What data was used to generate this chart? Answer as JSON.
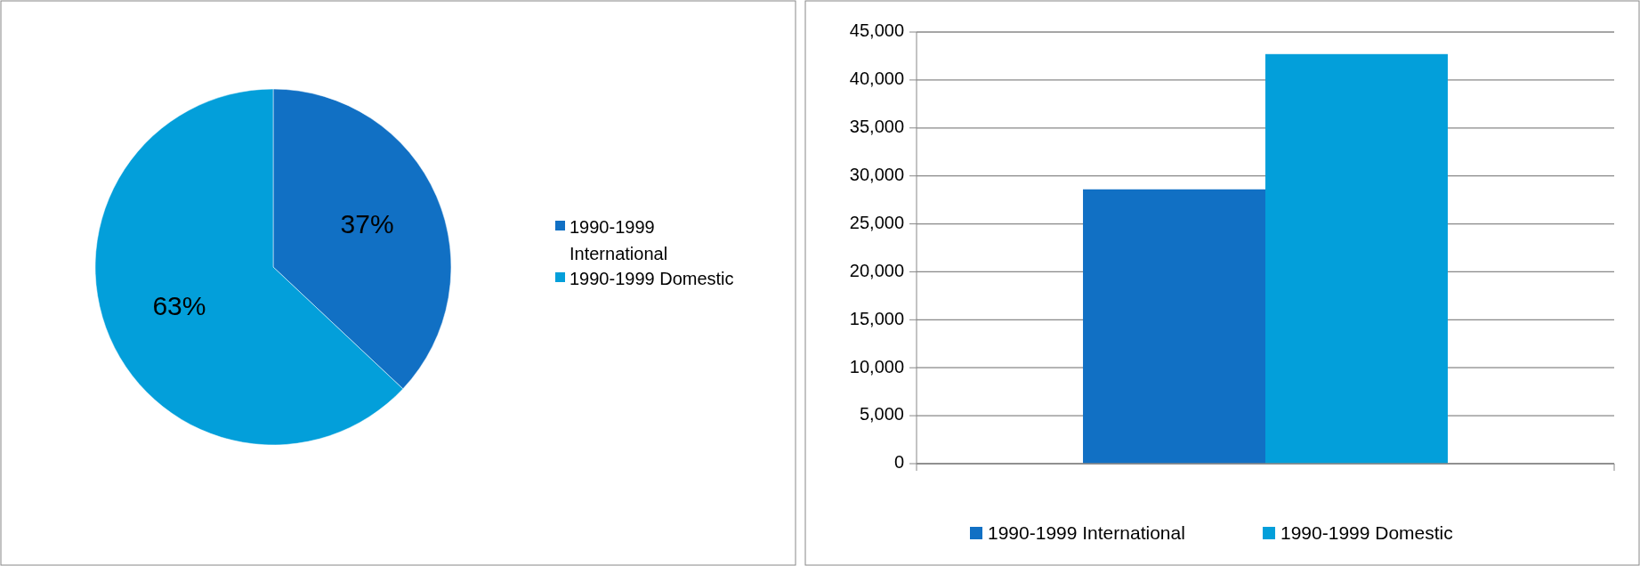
{
  "chart_data": [
    {
      "type": "pie",
      "categories": [
        "1990-1999 International",
        "1990-1999 Domestic"
      ],
      "values": [
        37,
        63
      ],
      "colors": [
        "#1170c4",
        "#039fda"
      ],
      "value_labels": [
        "37%",
        "63%"
      ],
      "legend": "right"
    },
    {
      "type": "bar",
      "categories": [
        null
      ],
      "series": [
        {
          "name": "1990-1999 International",
          "color": "#1170c4",
          "values": [
            28600
          ]
        },
        {
          "name": "1990-1999 Domestic",
          "color": "#039fda",
          "values": [
            42700
          ]
        }
      ],
      "ylim": [
        0,
        45000
      ],
      "yticks": [
        0,
        {
          "value": 5000,
          "label": "5,000"
        },
        {
          "value": 10000,
          "label": "10,000"
        },
        {
          "value": 15000,
          "label": "15,000"
        },
        {
          "value": 20000,
          "label": "20,000"
        },
        {
          "value": 25000,
          "label": "25,000"
        },
        {
          "value": 30000,
          "label": "30,000"
        },
        {
          "value": 35000,
          "label": "35,000"
        },
        {
          "value": 40000,
          "label": "40,000"
        },
        {
          "value": 45000,
          "label": "45,000"
        }
      ],
      "grid": "y",
      "legend": "bottom"
    }
  ]
}
